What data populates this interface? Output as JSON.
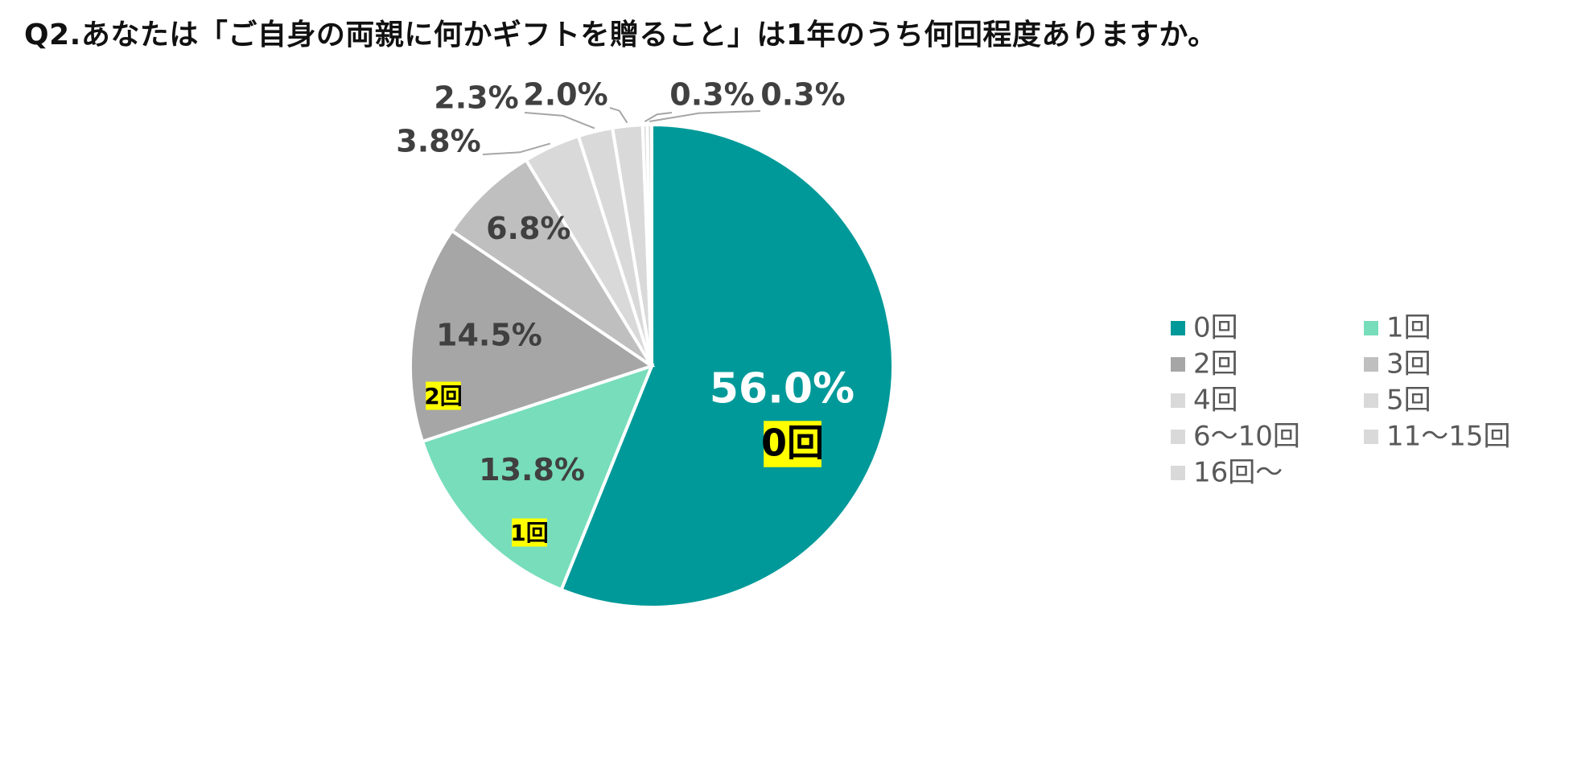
{
  "title": "Q2.あなたは「ご自身の両親に何かギフトを贈ること」は1年のうち何回程度ありますか。",
  "chart_data": {
    "type": "pie",
    "title": "Q2.あなたは「ご自身の両親に何かギフトを贈ること」は1年のうち何回程度ありますか。",
    "slices": [
      {
        "label": "0回",
        "value": 56.0,
        "display": "56.0%",
        "color": "#009999"
      },
      {
        "label": "1回",
        "value": 13.8,
        "display": "13.8%",
        "color": "#77ddbb"
      },
      {
        "label": "2回",
        "value": 14.5,
        "display": "14.5%",
        "color": "#a6a6a6"
      },
      {
        "label": "3回",
        "value": 6.8,
        "display": "6.8%",
        "color": "#bfbfbf"
      },
      {
        "label": "4回",
        "value": 3.8,
        "display": "3.8%",
        "color": "#d9d9d9"
      },
      {
        "label": "5回",
        "value": 2.3,
        "display": "2.3%",
        "color": "#d9d9d9"
      },
      {
        "label": "6～10回",
        "value": 2.0,
        "display": "2.0%",
        "color": "#d9d9d9"
      },
      {
        "label": "11～15回",
        "value": 0.3,
        "display": "0.3%",
        "color": "#d9d9d9"
      },
      {
        "label": "16回～",
        "value": 0.3,
        "display": "0.3%",
        "color": "#d9d9d9"
      }
    ],
    "highlight_tags": [
      "0回",
      "1回",
      "2回"
    ],
    "legend_position": "right",
    "highlight_color": "#ffff00"
  }
}
